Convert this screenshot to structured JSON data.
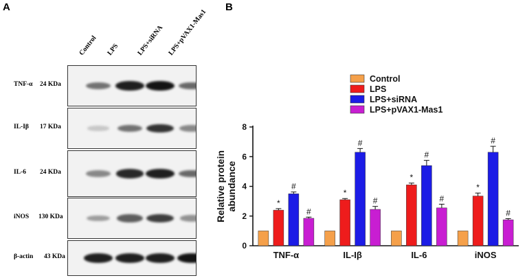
{
  "panels": {
    "left": "A",
    "right": "B"
  },
  "blot": {
    "lanes": [
      "Control",
      "LPS",
      "LPS+siRNA",
      "LPS+pVAX1-Mas1"
    ],
    "rows": [
      {
        "protein": "TNF-α",
        "size": "24 KDa",
        "intensities": [
          0.55,
          0.95,
          1.0,
          0.6
        ]
      },
      {
        "protein": "IL-Iβ",
        "size": "17 KDa",
        "intensities": [
          0.15,
          0.55,
          0.85,
          0.45
        ]
      },
      {
        "protein": "IL-6",
        "size": "24 KDa",
        "intensities": [
          0.45,
          0.9,
          0.95,
          0.6
        ]
      },
      {
        "protein": "iNOS",
        "size": "130 KDa",
        "intensities": [
          0.35,
          0.65,
          0.8,
          0.4
        ]
      },
      {
        "protein": "β-actin",
        "size": "43 KDa",
        "intensities": [
          0.95,
          0.95,
          0.95,
          1.0
        ]
      }
    ]
  },
  "chart_data": {
    "type": "bar",
    "title": "",
    "xlabel": "",
    "ylabel": "Relative protein abundance",
    "ylim": [
      0,
      8
    ],
    "yticks": [
      0,
      2,
      4,
      6,
      8
    ],
    "categories": [
      "TNF-α",
      "IL-Iβ",
      "IL-6",
      "iNOS"
    ],
    "legend_position": "top",
    "series": [
      {
        "name": "Control",
        "color": "#f5a04a",
        "values": [
          1,
          1,
          1,
          1
        ],
        "errors": [
          0,
          0,
          0,
          0
        ],
        "marks": [
          "",
          "",
          "",
          ""
        ]
      },
      {
        "name": "LPS",
        "color": "#ee1c1c",
        "values": [
          2.4,
          3.1,
          4.1,
          3.35
        ],
        "errors": [
          0.1,
          0.08,
          0.12,
          0.2
        ],
        "marks": [
          "*",
          "*",
          "*",
          "*"
        ]
      },
      {
        "name": "LPS+siRNA",
        "color": "#1c1ce6",
        "values": [
          3.5,
          6.3,
          5.4,
          6.3
        ],
        "errors": [
          0.12,
          0.25,
          0.35,
          0.4
        ],
        "marks": [
          "#",
          "#",
          "#",
          "#"
        ]
      },
      {
        "name": "LPS+pVAX1-Mas1",
        "color": "#c81ed2",
        "values": [
          1.85,
          2.45,
          2.55,
          1.75
        ],
        "errors": [
          0.08,
          0.2,
          0.25,
          0.08
        ],
        "marks": [
          "#",
          "#",
          "#",
          "#"
        ]
      }
    ]
  }
}
